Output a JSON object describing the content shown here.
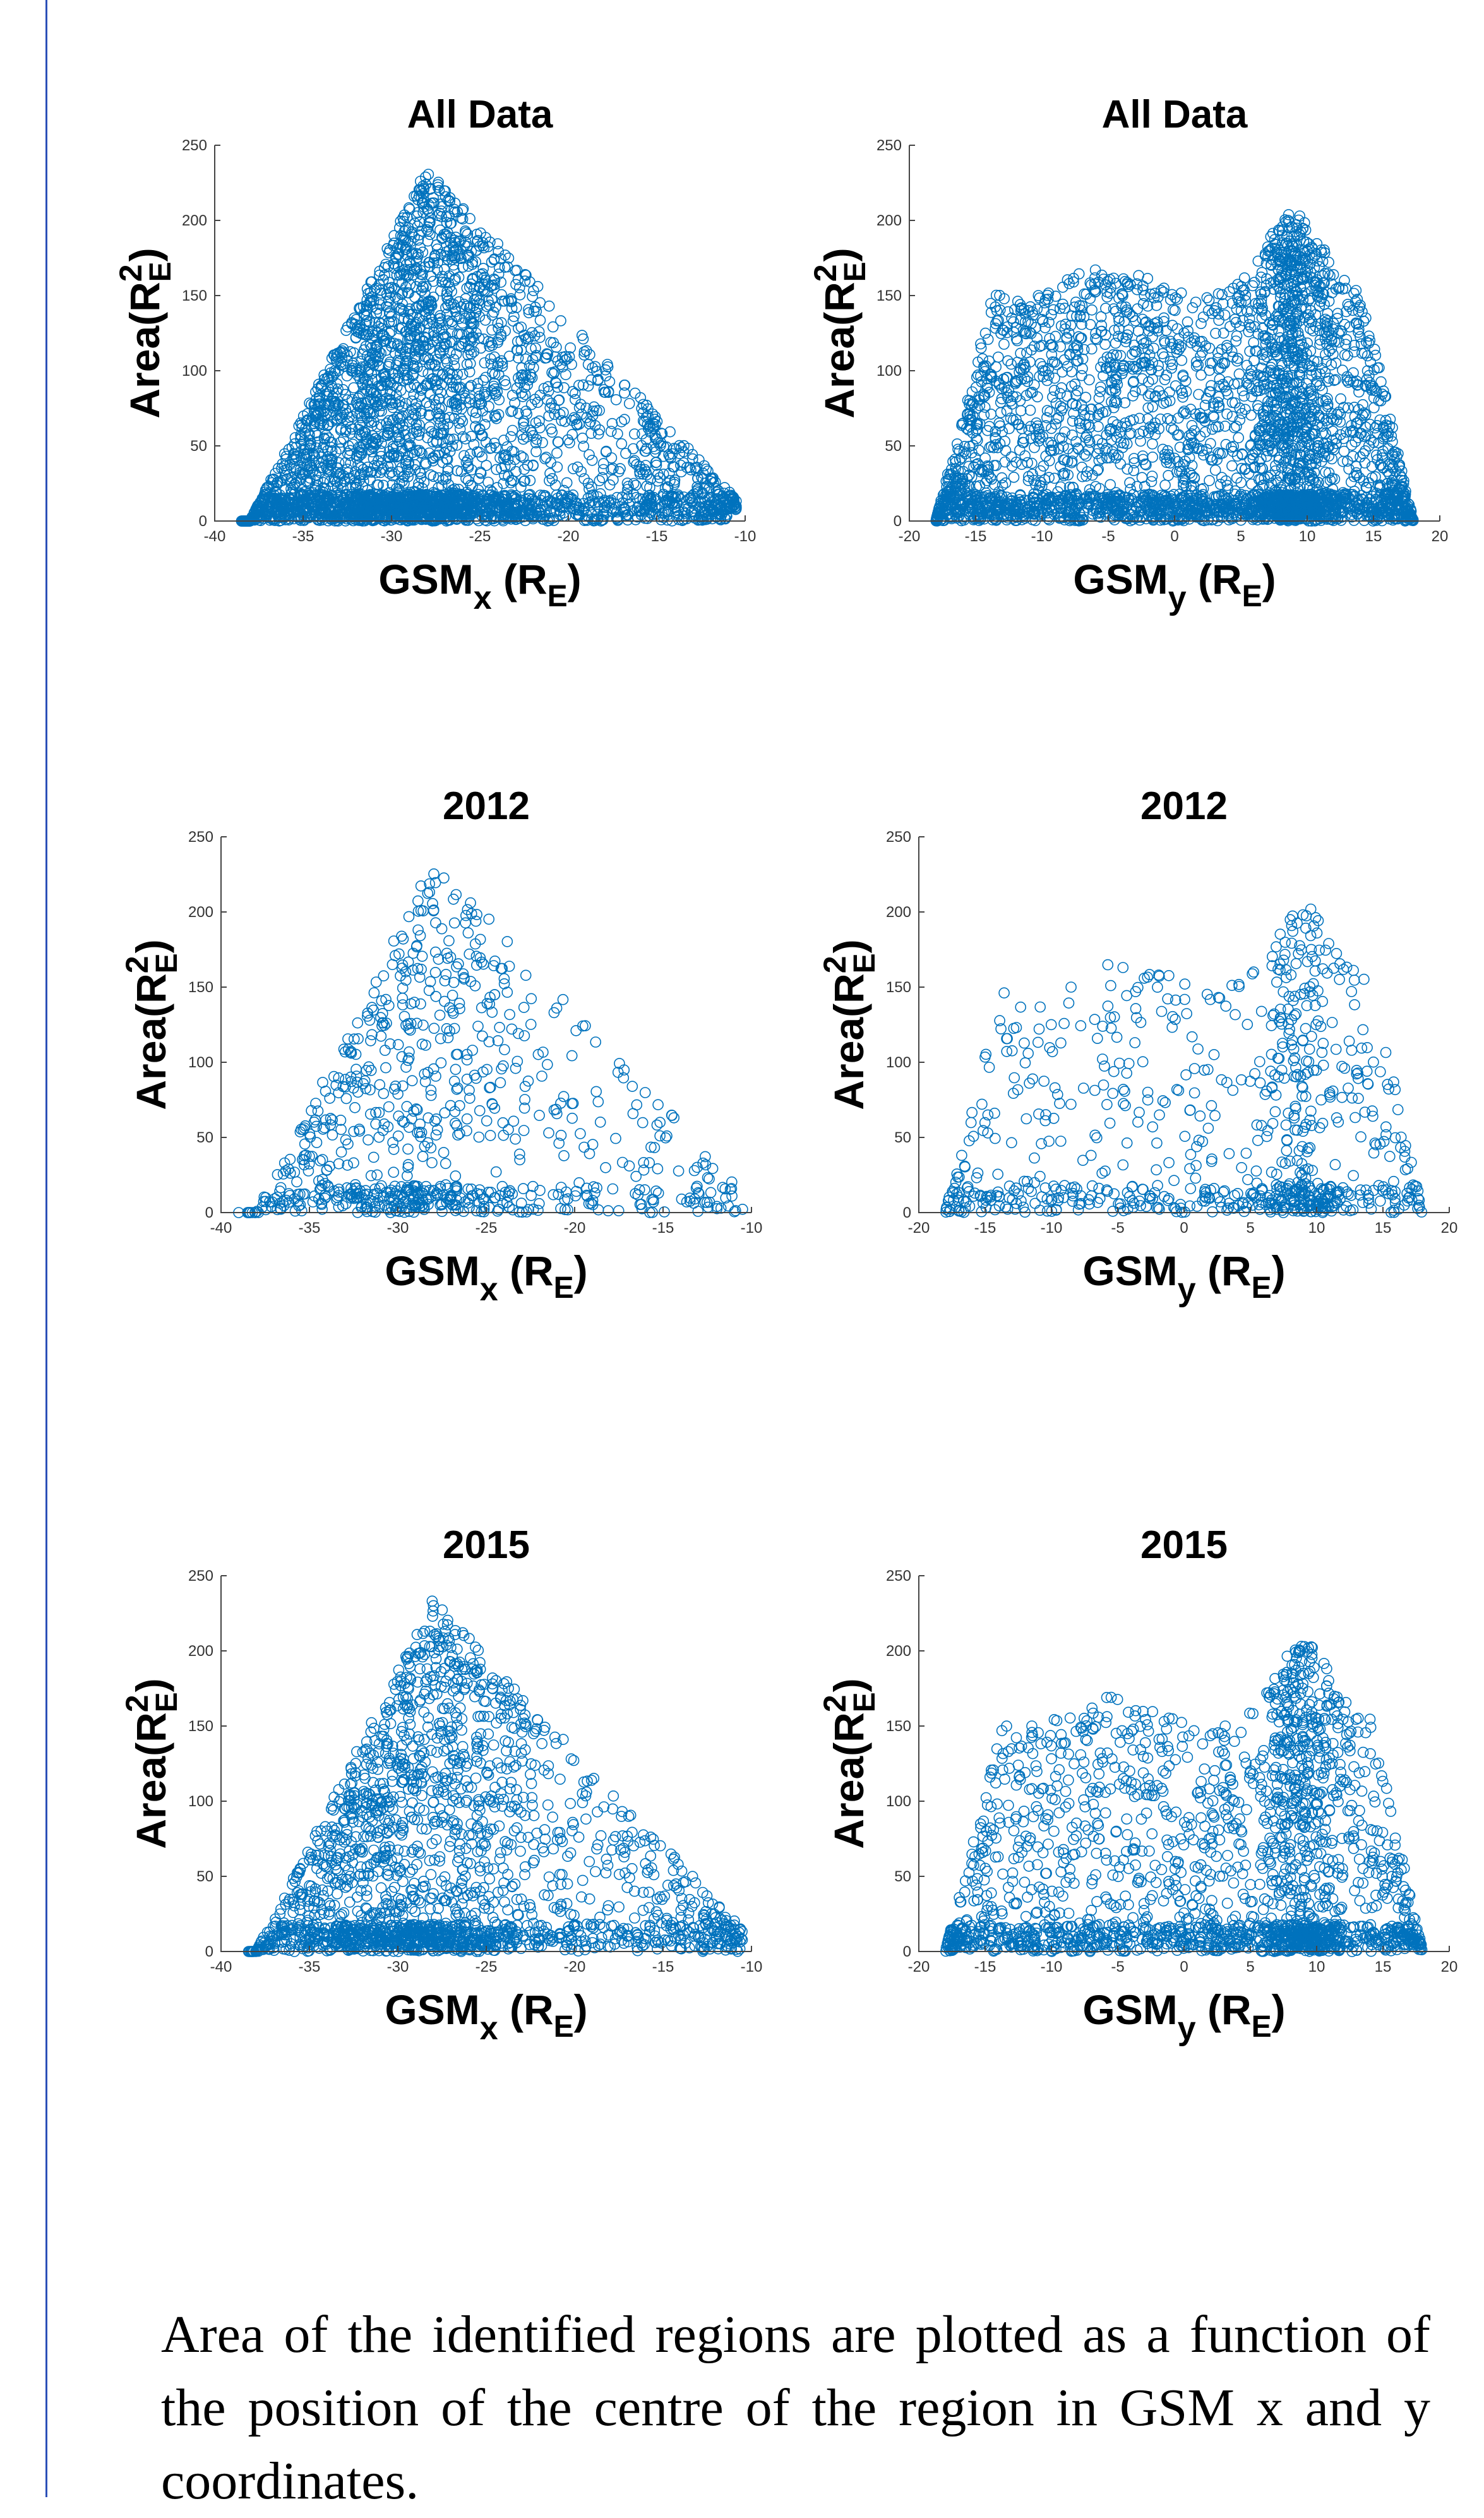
{
  "caption": "Area of the identified regions are plotted as a function of the position of the centre of the region in GSM x and y coordinates.",
  "chart_data": [
    {
      "type": "scatter",
      "title": "All Data",
      "xlabel": "GSMx (RE)",
      "ylabel": "Area(RE2)",
      "xlim": [
        -40,
        -10
      ],
      "ylim": [
        0,
        250
      ],
      "xticks": [
        -40,
        -35,
        -30,
        -25,
        -20,
        -15,
        -10
      ],
      "yticks": [
        0,
        50,
        100,
        150,
        200,
        250
      ],
      "color": "#0072bd",
      "grid": false,
      "marker": "open circle",
      "distribution": "gsmx",
      "n": 3600,
      "seed": 11
    },
    {
      "type": "scatter",
      "title": "All Data",
      "xlabel": "GSMy (RE)",
      "ylabel": "Area(RE2)",
      "xlim": [
        -20,
        20
      ],
      "ylim": [
        0,
        250
      ],
      "xticks": [
        -20,
        -15,
        -10,
        -5,
        0,
        5,
        10,
        15,
        20
      ],
      "yticks": [
        0,
        50,
        100,
        150,
        200,
        250
      ],
      "color": "#0072bd",
      "grid": false,
      "marker": "open circle",
      "distribution": "gsmy",
      "n": 3600,
      "seed": 12
    },
    {
      "type": "scatter",
      "title": "2012",
      "xlabel": "GSMx (RE)",
      "ylabel": "Area(RE2)",
      "xlim": [
        -40,
        -10
      ],
      "ylim": [
        0,
        250
      ],
      "xticks": [
        -40,
        -35,
        -30,
        -25,
        -20,
        -15,
        -10
      ],
      "yticks": [
        0,
        50,
        100,
        150,
        200,
        250
      ],
      "color": "#0072bd",
      "grid": false,
      "marker": "open circle",
      "distribution": "gsmx",
      "n": 800,
      "seed": 21
    },
    {
      "type": "scatter",
      "title": "2012",
      "xlabel": "GSMy (RE)",
      "ylabel": "Area(RE2)",
      "xlim": [
        -20,
        20
      ],
      "ylim": [
        0,
        250
      ],
      "xticks": [
        -20,
        -15,
        -10,
        -5,
        0,
        5,
        10,
        15,
        20
      ],
      "yticks": [
        0,
        50,
        100,
        150,
        200,
        250
      ],
      "color": "#0072bd",
      "grid": false,
      "marker": "open circle",
      "distribution": "gsmy",
      "n": 800,
      "seed": 22
    },
    {
      "type": "scatter",
      "title": "2015",
      "xlabel": "GSMx (RE)",
      "ylabel": "Area(RE2)",
      "xlim": [
        -40,
        -10
      ],
      "ylim": [
        0,
        250
      ],
      "xticks": [
        -40,
        -35,
        -30,
        -25,
        -20,
        -15,
        -10
      ],
      "yticks": [
        0,
        50,
        100,
        150,
        200,
        250
      ],
      "color": "#0072bd",
      "grid": false,
      "marker": "open circle",
      "distribution": "gsmx",
      "n": 2000,
      "seed": 31
    },
    {
      "type": "scatter",
      "title": "2015",
      "xlabel": "GSMy (RE)",
      "ylabel": "Area(RE2)",
      "xlim": [
        -20,
        20
      ],
      "ylim": [
        0,
        250
      ],
      "xticks": [
        -20,
        -15,
        -10,
        -5,
        0,
        5,
        10,
        15,
        20
      ],
      "yticks": [
        0,
        50,
        100,
        150,
        200,
        250
      ],
      "color": "#0072bd",
      "grid": false,
      "marker": "open circle",
      "distribution": "gsmy",
      "n": 2000,
      "seed": 32
    }
  ]
}
